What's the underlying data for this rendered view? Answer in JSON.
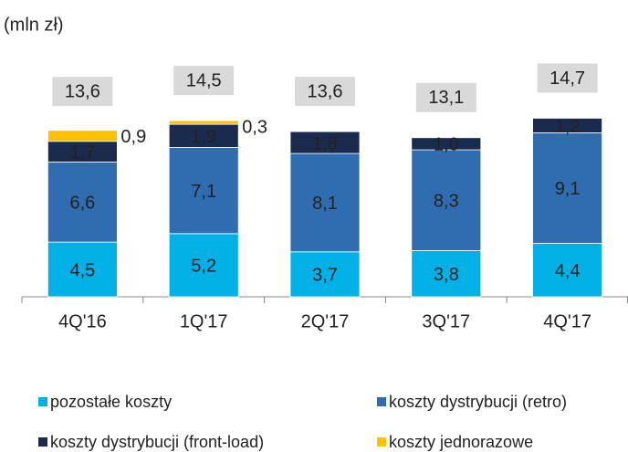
{
  "chart_data": {
    "type": "bar",
    "stacked": true,
    "subtitle": "(mln zł)",
    "categories": [
      "4Q'16",
      "1Q'17",
      "2Q'17",
      "3Q'17",
      "4Q'17"
    ],
    "series": [
      {
        "name": "pozostałe koszty",
        "color": "#00b0e6",
        "values": [
          4.5,
          5.2,
          3.7,
          3.8,
          4.4
        ],
        "value_labels": [
          "4,5",
          "5,2",
          "3,7",
          "3,8",
          "4,4"
        ]
      },
      {
        "name": "koszty dystrybucji (retro)",
        "color": "#2f6db0",
        "values": [
          6.6,
          7.1,
          8.1,
          8.3,
          9.1
        ],
        "value_labels": [
          "6,6",
          "7,1",
          "8,1",
          "8,3",
          "9,1"
        ]
      },
      {
        "name": "koszty dystrybucji (front-load)",
        "color": "#1b2b4d",
        "values": [
          1.7,
          1.9,
          1.8,
          1.0,
          1.2
        ],
        "value_labels": [
          "1,7",
          "1,9",
          "1,8",
          "1,0",
          "1,2"
        ]
      },
      {
        "name": "koszty jednorazowe",
        "color": "#ffc000",
        "values": [
          0.9,
          0.3,
          null,
          null,
          null
        ],
        "value_labels": [
          "0,9",
          "0,3",
          null,
          null,
          null
        ]
      }
    ],
    "totals": [
      13.6,
      14.5,
      13.6,
      13.1,
      14.7
    ],
    "total_labels": [
      "13,6",
      "14,5",
      "13,6",
      "13,1",
      "14,7"
    ]
  }
}
